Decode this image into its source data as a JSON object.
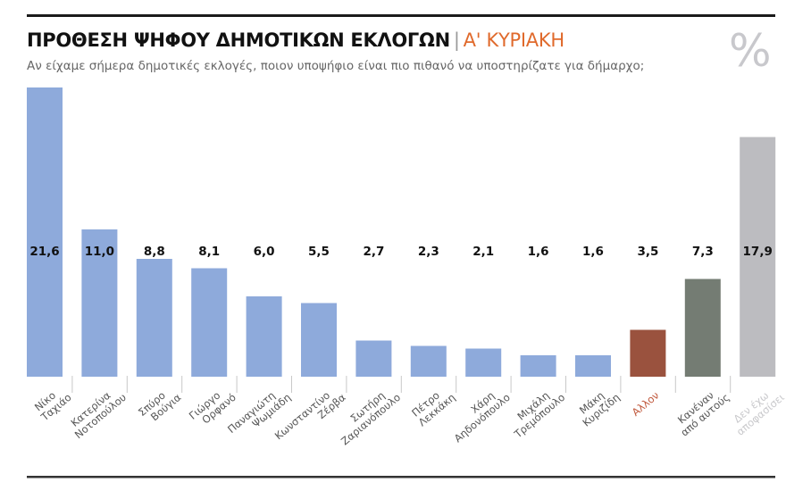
{
  "header": {
    "title": "ΠΡΟΘΕΣΗ ΨΗΦΟΥ ΔΗΜΟΤΙΚΩΝ ΕΚΛΟΓΩΝ",
    "separator": "|",
    "title_suffix": "Α' ΚΥΡΙΑΚΗ",
    "subtitle": "Αν είχαμε σήμερα δημοτικές εκλογές, ποιον υποψήφιο είναι πιο πιθανό να υποστηρίζατε για δήμαρχο;",
    "unit": "%"
  },
  "chart_data": {
    "type": "bar",
    "title": "ΠΡΟΘΕΣΗ ΨΗΦΟΥ ΔΗΜΟΤΙΚΩΝ ΕΚΛΟΓΩΝ | Α' ΚΥΡΙΑΚΗ",
    "ylabel": "%",
    "ylim": [
      0,
      21.6
    ],
    "grid": false,
    "categories": [
      [
        "Νίκο",
        "Ταχιάο"
      ],
      [
        "Κατερίνα",
        "Νοτοπούλου"
      ],
      [
        "Σπύρο",
        "Βούγια"
      ],
      [
        "Γιώργο",
        "Ορφανό"
      ],
      [
        "Παναγιώτη",
        "Ψωμιάδη"
      ],
      [
        "Κωνσταντίνο",
        "Ζέρβα"
      ],
      [
        "Σωτήρη",
        "Ζαριανόπουλο"
      ],
      [
        "Πέτρο",
        "Λεκκάκη"
      ],
      [
        "Χάρη",
        "Αηδονόπουλο"
      ],
      [
        "Μιχάλη",
        "Τρεμόπουλο"
      ],
      [
        "Μάκη",
        "Κυριζίδη"
      ],
      [
        "Αλλον"
      ],
      [
        "Κανέναν",
        "από αυτούς"
      ],
      [
        "Δεν έχω",
        "αποφασίσει"
      ]
    ],
    "value_labels": [
      "21,6",
      "11,0",
      "8,8",
      "8,1",
      "6,0",
      "5,5",
      "2,7",
      "2,3",
      "2,1",
      "1,6",
      "1,6",
      "3,5",
      "7,3",
      "17,9"
    ],
    "values": [
      21.6,
      11.0,
      8.8,
      8.1,
      6.0,
      5.5,
      2.7,
      2.3,
      2.1,
      1.6,
      1.6,
      3.5,
      7.3,
      17.9
    ],
    "bar_colors": [
      "#8eaadb",
      "#8eaadb",
      "#8eaadb",
      "#8eaadb",
      "#8eaadb",
      "#8eaadb",
      "#8eaadb",
      "#8eaadb",
      "#8eaadb",
      "#8eaadb",
      "#8eaadb",
      "#9a523e",
      "#747c73",
      "#bcbcc0"
    ],
    "label_colors": [
      "#555555",
      "#555555",
      "#555555",
      "#555555",
      "#555555",
      "#555555",
      "#555555",
      "#555555",
      "#555555",
      "#555555",
      "#555555",
      "#c0583c",
      "#555555",
      "#c9c9cc"
    ]
  }
}
